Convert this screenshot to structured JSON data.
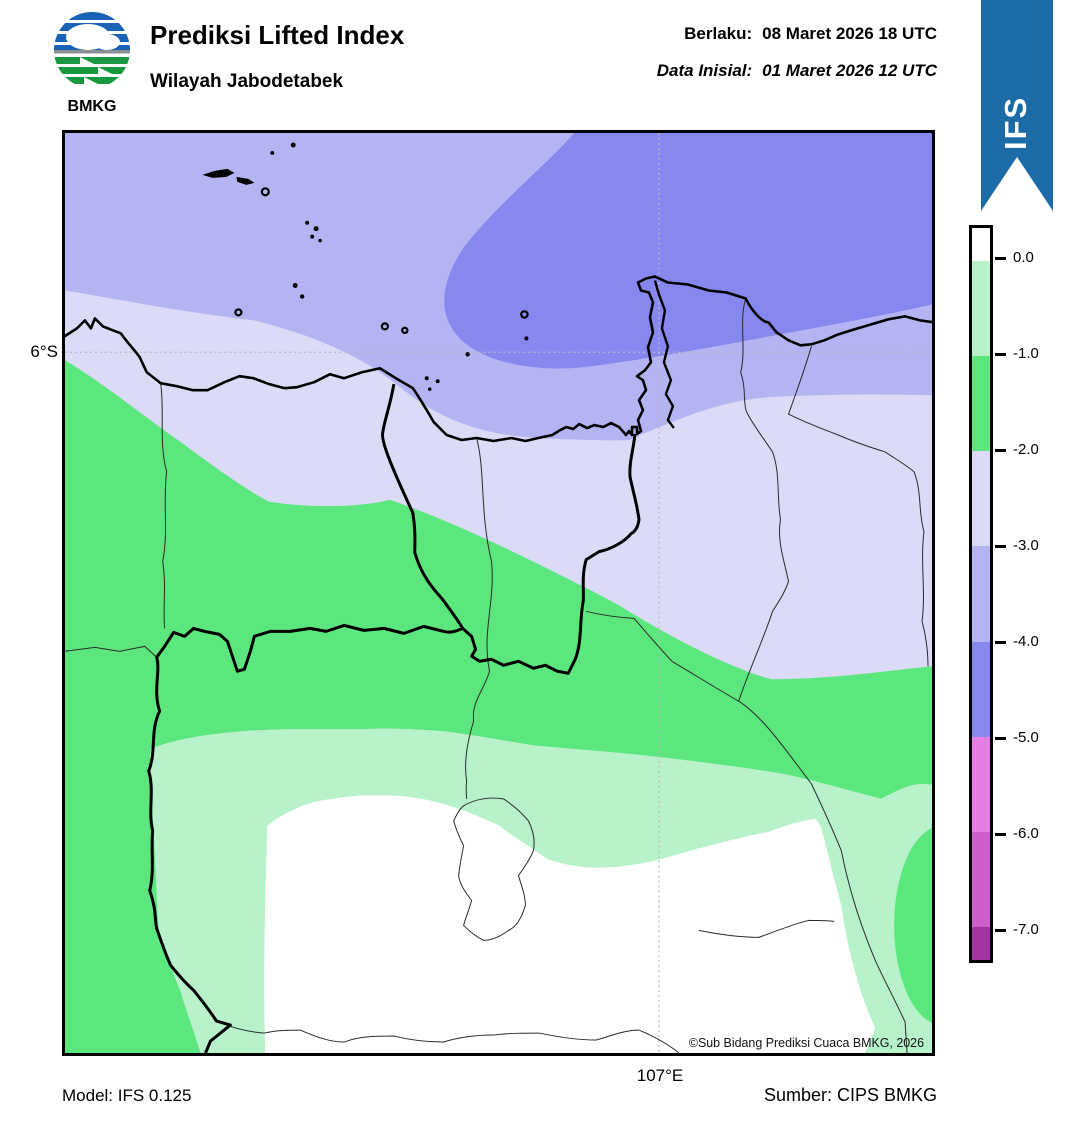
{
  "header": {
    "agency": "BMKG",
    "title": "Prediksi Lifted Index",
    "subtitle": "Wilayah Jabodetabek",
    "valid_label": "Berlaku:",
    "valid_value": "08 Maret 2026 18 UTC",
    "init_label": "Data Inisial:",
    "init_value": "01 Maret 2026 12 UTC",
    "ribbon_label": "IFS"
  },
  "map": {
    "lat_label": "6°S",
    "lon_label": "107°E",
    "copyright": "©Sub Bidang Prediksi Cuaca BMKG, 2026"
  },
  "colorbar": {
    "tick_labels": [
      "0.0",
      "-1.0",
      "-2.0",
      "-3.0",
      "-4.0",
      "-5.0",
      "-6.0",
      "-7.0"
    ],
    "segment_colors": [
      "#ffffff",
      "#b7f2ca",
      "#5ce77e",
      "#dbdbf7",
      "#b4b4f2",
      "#8688ef",
      "#e47de4",
      "#cc5fcc",
      "#a335a3"
    ]
  },
  "footer": {
    "model": "Model: IFS 0.125",
    "source": "Sumber: CIPS BMKG"
  },
  "colors": {
    "m0": "#ffffff",
    "m1": "#b7f2ca",
    "m2": "#5ce77e",
    "m3": "#dbdbf7",
    "m4": "#b4b4f2",
    "m5": "#8688ef",
    "ribbon": "#1b6ca6",
    "logo_blue": "#1a62b5",
    "logo_green": "#18993f",
    "grid": "#b8b8c0"
  }
}
